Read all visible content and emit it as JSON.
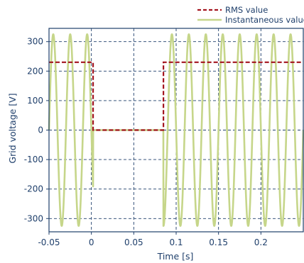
{
  "chart_data": {
    "type": "line",
    "title": "",
    "xlabel": "Time [s]",
    "ylabel": "Grid voltage [V]",
    "xlim": [
      -0.05,
      0.25
    ],
    "ylim": [
      -345,
      345
    ],
    "grid": true,
    "legend_position": "top-right (above plot)",
    "x_ticks": [
      -0.05,
      0,
      0.05,
      0.1,
      0.15,
      0.2
    ],
    "x_tick_labels": [
      "-0.05",
      "0",
      "0.05",
      "0.1",
      "0.15",
      "0.2"
    ],
    "y_ticks": [
      -300,
      -200,
      -100,
      0,
      100,
      200,
      300
    ],
    "y_tick_labels": [
      "-300",
      "-200",
      "-100",
      "0",
      "100",
      "200",
      "300"
    ],
    "series": [
      {
        "name": "RMS value",
        "style": "dashed",
        "color": "#a3151f",
        "points": [
          [
            -0.05,
            230
          ],
          [
            0.002,
            230
          ],
          [
            0.002,
            0
          ],
          [
            0.085,
            0
          ],
          [
            0.085,
            230
          ],
          [
            0.25,
            230
          ]
        ]
      },
      {
        "name": "Instantaneous value",
        "style": "solid",
        "color": "#c6d68a",
        "waveform": "sine",
        "amplitude": 325,
        "frequency_hz": 50,
        "phase_deg": 180,
        "dropout_interval": [
          0.002,
          0.085
        ]
      }
    ]
  },
  "colors": {
    "axis": "#1f3f6b",
    "grid": "#1f3f6b",
    "rms": "#a3151f",
    "instantaneous": "#c6d68a"
  }
}
